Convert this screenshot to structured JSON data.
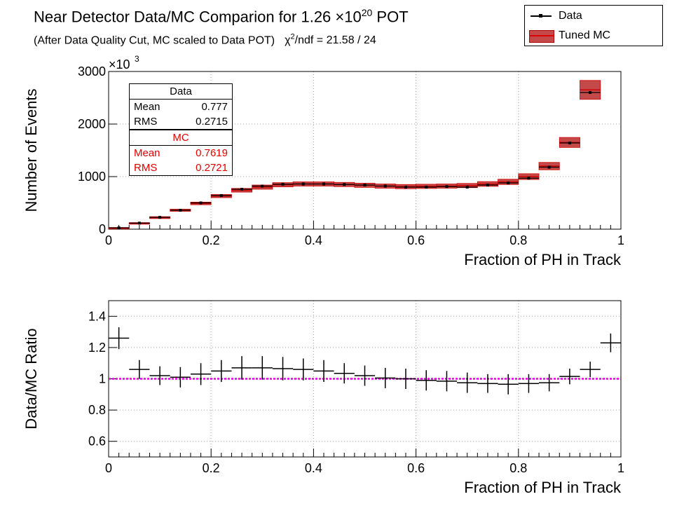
{
  "header": {
    "title_main": "Near Detector Data/MC Comparion for 1.26 ×10",
    "title_exp": "20",
    "title_end": " POT",
    "subtitle": "(After Data Quality Cut, MC scaled to Data POT)",
    "chi_symbol": "χ",
    "chi_exp": "2",
    "chi_rest": "/ndf = 21.58 / 24"
  },
  "legend": {
    "data_label": "Data",
    "mc_label": "Tuned MC"
  },
  "stats": {
    "data": {
      "title": "Data",
      "mean_label": "Mean",
      "mean": "0.777",
      "rms_label": "RMS",
      "rms": "0.2715"
    },
    "mc": {
      "title": "MC",
      "mean_label": "Mean",
      "mean": "0.7619",
      "rms_label": "RMS",
      "rms": "0.2721"
    }
  },
  "colors": {
    "mc_fill": "#c44a4a",
    "mc_line": "#d00000",
    "ratio_ref": "#e000e0",
    "axis": "#000000",
    "grid": "#a0a0a0"
  },
  "chart_data": [
    {
      "type": "histogram",
      "xlabel": "Fraction of PH in Track",
      "ylabel": "Number of Events",
      "y_multiplier": "×10",
      "y_multiplier_exp": "3",
      "xlim": [
        0,
        1
      ],
      "ylim": [
        0,
        3000
      ],
      "x_ticks": [
        "0",
        "0.2",
        "0.4",
        "0.6",
        "0.8",
        "1"
      ],
      "y_ticks": [
        "0",
        "1000",
        "2000",
        "3000"
      ],
      "grid": true,
      "bin_width": 0.04,
      "x": [
        0.02,
        0.06,
        0.1,
        0.14,
        0.18,
        0.22,
        0.26,
        0.3,
        0.34,
        0.38,
        0.42,
        0.46,
        0.5,
        0.54,
        0.58,
        0.62,
        0.66,
        0.7,
        0.74,
        0.78,
        0.82,
        0.86,
        0.9,
        0.94,
        0.98
      ],
      "series": [
        {
          "name": "Data",
          "values": [
            25,
            115,
            225,
            360,
            500,
            640,
            760,
            820,
            855,
            860,
            860,
            850,
            840,
            820,
            800,
            800,
            810,
            800,
            840,
            880,
            970,
            1180,
            1640,
            2600,
            0
          ]
        },
        {
          "name": "Tuned MC",
          "values": [
            20,
            110,
            220,
            360,
            490,
            630,
            740,
            800,
            845,
            860,
            860,
            850,
            835,
            820,
            810,
            815,
            820,
            830,
            860,
            900,
            1000,
            1200,
            1650,
            2650,
            0
          ],
          "band": [
            12,
            15,
            18,
            20,
            25,
            30,
            35,
            40,
            40,
            40,
            40,
            40,
            40,
            40,
            40,
            40,
            40,
            40,
            45,
            50,
            55,
            70,
            95,
            180,
            0
          ]
        }
      ]
    },
    {
      "type": "scatter",
      "xlabel": "Fraction of PH in Track",
      "ylabel": "Data/MC Ratio",
      "xlim": [
        0,
        1
      ],
      "ylim": [
        0.5,
        1.5
      ],
      "x_ticks": [
        "0",
        "0.2",
        "0.4",
        "0.6",
        "0.8",
        "1"
      ],
      "y_ticks": [
        "0.6",
        "0.8",
        "1",
        "1.2",
        "1.4"
      ],
      "grid": true,
      "reference_line": 1.0,
      "x": [
        0.02,
        0.06,
        0.1,
        0.14,
        0.18,
        0.22,
        0.26,
        0.3,
        0.34,
        0.38,
        0.42,
        0.46,
        0.5,
        0.54,
        0.58,
        0.62,
        0.66,
        0.7,
        0.74,
        0.78,
        0.82,
        0.86,
        0.9,
        0.94,
        0.98
      ],
      "series": [
        {
          "name": "Data/MC",
          "values": [
            1.26,
            1.06,
            1.02,
            1.01,
            1.03,
            1.05,
            1.07,
            1.07,
            1.065,
            1.06,
            1.05,
            1.035,
            1.02,
            1.005,
            1.0,
            0.99,
            0.985,
            0.975,
            0.97,
            0.965,
            0.97,
            0.975,
            1.015,
            1.06,
            1.23
          ],
          "errors": [
            0.07,
            0.06,
            0.06,
            0.065,
            0.07,
            0.07,
            0.075,
            0.075,
            0.075,
            0.07,
            0.07,
            0.065,
            0.065,
            0.065,
            0.065,
            0.065,
            0.065,
            0.065,
            0.06,
            0.065,
            0.06,
            0.055,
            0.05,
            0.05,
            0.06
          ]
        }
      ]
    }
  ]
}
